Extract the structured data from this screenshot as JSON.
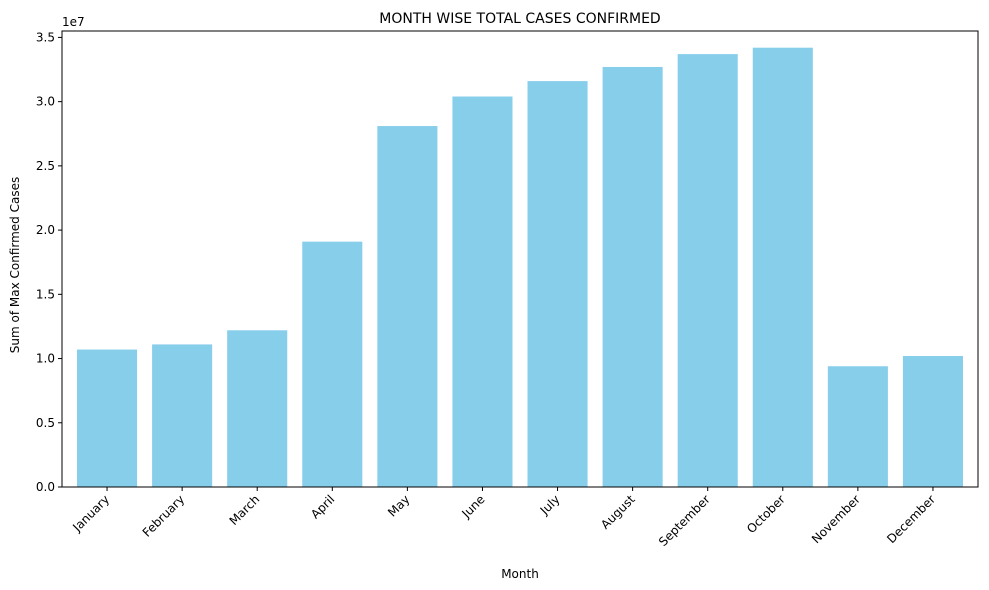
{
  "chart_data": {
    "type": "bar",
    "title": "MONTH WISE TOTAL CASES CONFIRMED",
    "xlabel": "Month",
    "ylabel": "Sum of Max Confirmed Cases",
    "y_offset_label": "1e7",
    "categories": [
      "January",
      "February",
      "March",
      "April",
      "May",
      "June",
      "July",
      "August",
      "September",
      "October",
      "November",
      "December"
    ],
    "values": [
      10700000,
      11100000,
      12200000,
      19100000,
      28100000,
      30400000,
      31600000,
      32700000,
      33700000,
      34200000,
      9400000,
      10200000
    ],
    "ylim": [
      0,
      35500000
    ],
    "y_ticks": [
      0,
      5000000,
      10000000,
      15000000,
      20000000,
      25000000,
      30000000,
      35000000
    ],
    "y_tick_labels": [
      "0.0",
      "0.5",
      "1.0",
      "1.5",
      "2.0",
      "2.5",
      "3.0",
      "3.5"
    ],
    "bar_color": "#87ceeb",
    "grid": false,
    "legend": "none"
  }
}
